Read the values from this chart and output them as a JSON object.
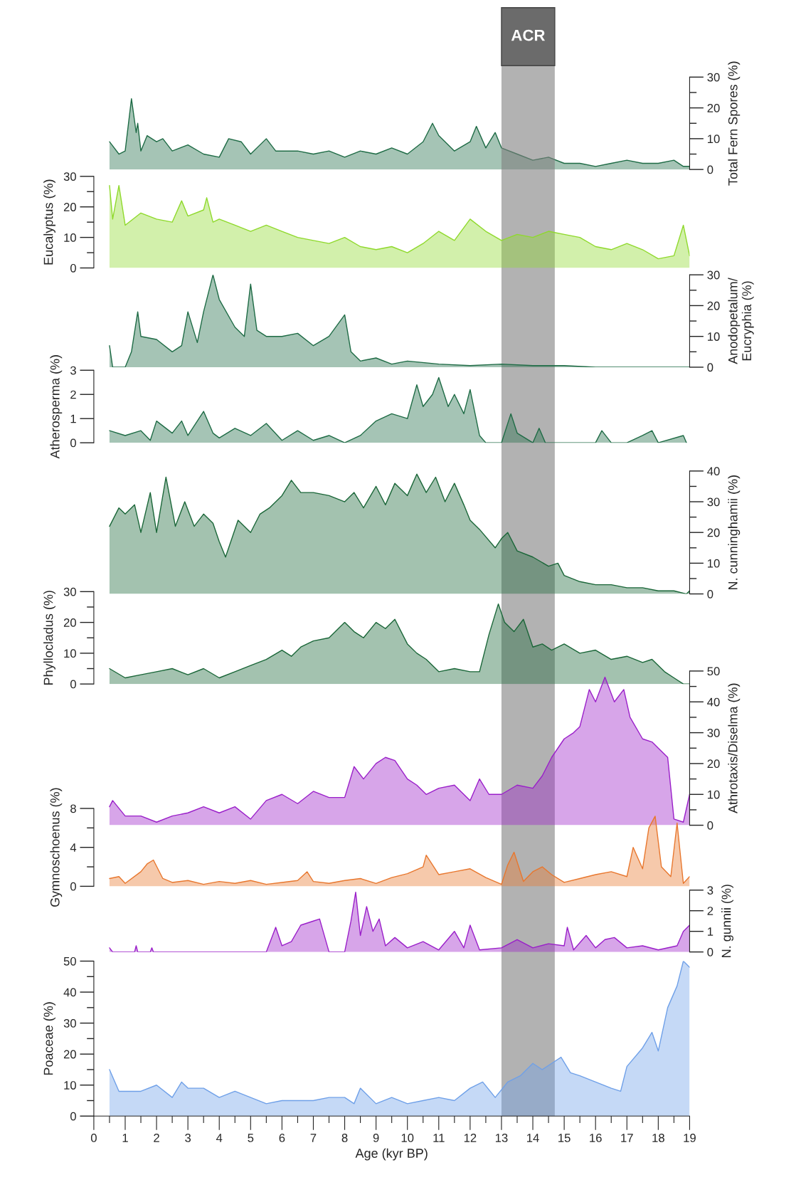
{
  "chart_data": [
    {
      "type": "area",
      "ylabel": "Total Fern Spores (%)",
      "xlim": [
        0,
        19
      ],
      "ylim": [
        0,
        30
      ],
      "yticks": [
        0,
        {
          "value": 5,
          "label": null
        },
        10,
        {
          "value": 15,
          "label": null
        },
        20,
        {
          "value": 25,
          "label": null
        },
        30
      ],
      "tick_labels": "y",
      "bands": [
        {
          "axis": "x",
          "from": 13,
          "to": 14.7,
          "label": "ACR",
          "color": "#7f7f7f"
        }
      ],
      "series": [
        {
          "color": "#1e6b45",
          "x": [
            0.5,
            0.8,
            1.0,
            1.2,
            1.35,
            1.4,
            1.5,
            1.7,
            2.0,
            2.2,
            2.5,
            3.0,
            3.5,
            4.0,
            4.3,
            4.7,
            5.0,
            5.5,
            5.8,
            6.5,
            7.0,
            7.5,
            8.0,
            8.5,
            9.0,
            9.5,
            10.0,
            10.5,
            10.8,
            11.0,
            11.5,
            12.0,
            12.2,
            12.5,
            12.8,
            13.0,
            13.5,
            14.0,
            14.5,
            15.0,
            15.5,
            16.0,
            16.5,
            17.0,
            17.5,
            18.0,
            18.5,
            18.8,
            19.0
          ],
          "values": [
            9,
            5,
            6,
            23,
            12,
            15,
            6,
            11,
            9,
            10,
            6,
            8,
            5,
            4,
            10,
            9,
            5,
            10,
            6,
            6,
            5,
            6,
            4,
            6,
            5,
            7,
            5,
            9,
            15,
            11,
            6,
            9,
            14,
            7,
            12,
            7,
            5,
            3,
            4,
            2,
            2,
            1,
            2,
            3,
            2,
            2,
            3,
            1,
            1
          ]
        }
      ]
    },
    {
      "type": "area",
      "ylabel": "Eucalyptus (%)",
      "xlim": [
        0,
        19
      ],
      "ylim": [
        0,
        30
      ],
      "yticks": [
        0,
        {
          "value": 5,
          "label": null
        },
        10,
        {
          "value": 15,
          "label": null
        },
        20,
        {
          "value": 25,
          "label": null
        },
        30
      ],
      "tick_labels": "y",
      "series": [
        {
          "color": "#8fd92c",
          "x": [
            0.5,
            0.6,
            0.8,
            1.0,
            1.5,
            2.0,
            2.5,
            2.8,
            3.0,
            3.5,
            3.6,
            3.8,
            4.0,
            4.5,
            5.0,
            5.5,
            6.0,
            6.5,
            7.0,
            7.5,
            8.0,
            8.5,
            9.0,
            9.5,
            10.0,
            10.5,
            11.0,
            11.5,
            12.0,
            12.5,
            13.0,
            13.5,
            14.0,
            14.5,
            15.0,
            15.5,
            16.0,
            16.5,
            17.0,
            17.5,
            18.0,
            18.5,
            18.8,
            19.0
          ],
          "values": [
            27,
            16,
            27,
            14,
            18,
            16,
            15,
            22,
            17,
            19,
            23,
            15,
            16,
            14,
            12,
            14,
            12,
            10,
            9,
            8,
            10,
            7,
            6,
            7,
            5,
            8,
            12,
            9,
            16,
            12,
            9,
            11,
            10,
            12,
            11,
            10,
            7,
            6,
            8,
            6,
            3,
            4,
            14,
            4
          ]
        }
      ]
    },
    {
      "type": "area",
      "ylabel": "Anodopetalum/\nEucryphia (%)",
      "xlim": [
        0,
        19
      ],
      "ylim": [
        0,
        30
      ],
      "yticks": [
        0,
        {
          "value": 5,
          "label": null
        },
        10,
        {
          "value": 15,
          "label": null
        },
        20,
        {
          "value": 25,
          "label": null
        },
        30
      ],
      "tick_labels": "y",
      "series": [
        {
          "color": "#1e6b45",
          "x": [
            0.5,
            0.6,
            1.0,
            1.2,
            1.4,
            1.5,
            2.0,
            2.5,
            2.8,
            3.0,
            3.3,
            3.5,
            3.8,
            4.0,
            4.5,
            4.8,
            5.0,
            5.2,
            5.5,
            6.0,
            6.5,
            7.0,
            7.5,
            8.0,
            8.2,
            8.5,
            9.0,
            9.5,
            10.0,
            11.0,
            12.0,
            13.0,
            14.0,
            15.0,
            16.0,
            19.0
          ],
          "values": [
            7,
            0,
            0,
            5,
            18,
            10,
            9,
            5,
            7,
            18,
            8,
            18,
            30,
            22,
            13,
            10,
            27,
            12,
            10,
            10,
            11,
            7,
            10,
            17,
            5,
            2,
            3,
            1,
            2,
            1,
            0.5,
            1,
            0.5,
            0.5,
            0,
            0
          ]
        }
      ]
    },
    {
      "type": "area",
      "ylabel": "Atherosperma (%)",
      "xlim": [
        0,
        19
      ],
      "ylim": [
        0,
        3
      ],
      "yticks": [
        0,
        1,
        2,
        3
      ],
      "tick_labels": "y",
      "series": [
        {
          "color": "#1e6b45",
          "x": [
            0.5,
            1.0,
            1.5,
            1.8,
            2.0,
            2.5,
            2.8,
            3.0,
            3.5,
            3.8,
            4.0,
            4.5,
            5.0,
            5.5,
            6.0,
            6.5,
            7.0,
            7.5,
            8.0,
            8.5,
            9.0,
            9.5,
            10.0,
            10.3,
            10.5,
            10.8,
            11.0,
            11.3,
            11.5,
            11.8,
            12.0,
            12.3,
            12.5,
            13.0,
            13.3,
            13.5,
            14.0,
            14.2,
            14.4,
            16.0,
            16.2,
            16.5,
            17.0,
            17.5,
            17.8,
            18.0,
            18.8,
            18.9
          ],
          "values": [
            0.5,
            0.3,
            0.5,
            0.1,
            0.9,
            0.4,
            0.9,
            0.3,
            1.3,
            0.4,
            0.2,
            0.6,
            0.3,
            0.8,
            0.1,
            0.5,
            0.1,
            0.3,
            0,
            0.3,
            0.9,
            1.2,
            1.0,
            2.4,
            1.5,
            2.0,
            2.7,
            1.5,
            2.0,
            1.2,
            2.2,
            0.3,
            0,
            0,
            1.2,
            0.4,
            0,
            0.6,
            0,
            0,
            0.5,
            0,
            0,
            0.3,
            0.5,
            0,
            0.3,
            0
          ]
        }
      ]
    },
    {
      "type": "area",
      "ylabel": "N. cunninghamii (%)",
      "xlim": [
        0,
        19
      ],
      "ylim": [
        0,
        40
      ],
      "yticks": [
        0,
        {
          "value": 5,
          "label": null
        },
        10,
        {
          "value": 15,
          "label": null
        },
        20,
        {
          "value": 25,
          "label": null
        },
        30,
        {
          "value": 35,
          "label": null
        },
        40
      ],
      "tick_labels": "y",
      "series": [
        {
          "color": "#1a6638",
          "x": [
            0.5,
            0.8,
            1.0,
            1.3,
            1.5,
            1.8,
            2.0,
            2.3,
            2.6,
            2.9,
            3.2,
            3.5,
            3.8,
            4.0,
            4.2,
            4.6,
            5.0,
            5.3,
            5.6,
            6.0,
            6.3,
            6.6,
            7.0,
            7.5,
            8.0,
            8.3,
            8.6,
            9.0,
            9.3,
            9.6,
            10.0,
            10.3,
            10.6,
            10.9,
            11.2,
            11.5,
            11.8,
            12.0,
            12.3,
            12.8,
            13.0,
            13.2,
            13.5,
            14.0,
            14.5,
            14.8,
            15.0,
            15.5,
            16.0,
            16.5,
            17.0,
            17.5,
            18.0,
            18.5,
            18.9,
            19.0
          ],
          "values": [
            22,
            28,
            26,
            29,
            20,
            33,
            20,
            38,
            22,
            30,
            22,
            26,
            23,
            17,
            12,
            24,
            20,
            26,
            28,
            32,
            37,
            33,
            33,
            32,
            30,
            33,
            28,
            35,
            29,
            36,
            32,
            39,
            33,
            38,
            30,
            36,
            29,
            24,
            21,
            15,
            18,
            20,
            14,
            12,
            9,
            10,
            6,
            4,
            3,
            3,
            2,
            2,
            1,
            1,
            0,
            1
          ]
        }
      ]
    },
    {
      "type": "area",
      "ylabel": "Phyllocladus (%)",
      "xlim": [
        0,
        19
      ],
      "ylim": [
        0,
        30
      ],
      "yticks": [
        0,
        {
          "value": 5,
          "label": null
        },
        10,
        {
          "value": 15,
          "label": null
        },
        20,
        {
          "value": 25,
          "label": null
        },
        30
      ],
      "tick_labels": "y",
      "series": [
        {
          "color": "#1a6638",
          "x": [
            0.5,
            1.0,
            1.5,
            2.0,
            2.5,
            3.0,
            3.5,
            4.0,
            4.5,
            5.0,
            5.5,
            6.0,
            6.3,
            6.6,
            7.0,
            7.5,
            8.0,
            8.3,
            8.6,
            9.0,
            9.3,
            9.6,
            10.0,
            10.3,
            10.6,
            11.0,
            11.5,
            12.0,
            12.3,
            12.6,
            12.9,
            13.1,
            13.4,
            13.7,
            14.0,
            14.3,
            14.6,
            15.0,
            15.5,
            16.0,
            16.5,
            17.0,
            17.5,
            17.8,
            18.2,
            18.5,
            18.8,
            19.0
          ],
          "values": [
            5,
            2,
            3,
            4,
            5,
            3,
            5,
            2,
            4,
            6,
            8,
            11,
            9,
            12,
            14,
            15,
            20,
            17,
            15,
            20,
            18,
            21,
            13,
            10,
            8,
            4,
            5,
            4,
            4,
            16,
            26,
            20,
            17,
            21,
            12,
            13,
            11,
            13,
            10,
            11,
            8,
            9,
            7,
            8,
            4,
            2,
            0,
            0
          ]
        }
      ]
    },
    {
      "type": "area",
      "ylabel": "Athrotaxis/Diselma (%)",
      "xlim": [
        0,
        19
      ],
      "ylim": [
        0,
        50
      ],
      "yticks": [
        0,
        {
          "value": 5,
          "label": null
        },
        10,
        {
          "value": 15,
          "label": null
        },
        20,
        {
          "value": 25,
          "label": null
        },
        30,
        {
          "value": 35,
          "label": null
        },
        40,
        {
          "value": 45,
          "label": null
        },
        50
      ],
      "tick_labels": "y",
      "series": [
        {
          "color": "#9a1fc9",
          "x": [
            0.5,
            0.6,
            1.0,
            1.5,
            2.0,
            2.5,
            3.0,
            3.5,
            4.0,
            4.5,
            5.0,
            5.5,
            6.0,
            6.5,
            7.0,
            7.5,
            8.0,
            8.3,
            8.6,
            9.0,
            9.3,
            9.6,
            10.0,
            10.3,
            10.6,
            11.0,
            11.5,
            12.0,
            12.3,
            12.6,
            13.0,
            13.5,
            14.0,
            14.3,
            14.6,
            15.0,
            15.3,
            15.5,
            15.8,
            16.0,
            16.3,
            16.6,
            16.9,
            17.1,
            17.5,
            17.8,
            18.0,
            18.3,
            18.5,
            18.8,
            19.0
          ],
          "values": [
            6,
            8,
            3,
            3,
            1,
            3,
            4,
            6,
            4,
            6,
            2,
            8,
            10,
            7,
            11,
            9,
            9,
            19,
            15,
            20,
            22,
            21,
            15,
            13,
            10,
            12,
            13,
            8,
            15,
            10,
            10,
            13,
            12,
            16,
            22,
            28,
            30,
            32,
            44,
            40,
            48,
            40,
            44,
            35,
            28,
            27,
            25,
            22,
            2,
            1,
            10
          ]
        }
      ]
    },
    {
      "type": "area",
      "ylabel": "Gymnoschoenus (%)",
      "xlim": [
        0,
        19
      ],
      "ylim": [
        0,
        8
      ],
      "yticks": [
        0,
        {
          "value": 2,
          "label": null
        },
        4,
        {
          "value": 6,
          "label": null
        },
        8
      ],
      "tick_labels": "y",
      "series": [
        {
          "color": "#e8772e",
          "x": [
            0.5,
            0.8,
            1.0,
            1.5,
            1.7,
            1.9,
            2.2,
            2.5,
            3.0,
            3.5,
            4.0,
            4.5,
            5.0,
            5.5,
            6.0,
            6.5,
            6.8,
            7.0,
            7.5,
            8.0,
            8.5,
            9.0,
            9.5,
            10.0,
            10.5,
            10.6,
            11.0,
            11.5,
            12.0,
            12.5,
            13.0,
            13.2,
            13.4,
            13.7,
            14.0,
            14.3,
            14.6,
            15.0,
            15.5,
            16.0,
            16.5,
            17.0,
            17.2,
            17.5,
            17.7,
            17.9,
            18.1,
            18.4,
            18.6,
            18.8,
            19.0
          ],
          "values": [
            0.8,
            1.0,
            0.3,
            1.5,
            2.3,
            2.7,
            0.8,
            0.4,
            0.6,
            0.2,
            0.5,
            0.3,
            0.6,
            0.2,
            0.4,
            0.6,
            1.5,
            0.5,
            0.3,
            0.6,
            0.8,
            0.3,
            0.9,
            1.3,
            2.0,
            3.2,
            1.2,
            1.5,
            1.8,
            0.9,
            0.2,
            2.2,
            3.5,
            0.5,
            1.5,
            2.0,
            1.2,
            0.4,
            0.8,
            1.2,
            1.5,
            1.0,
            4.0,
            1.8,
            6.0,
            7.2,
            2.0,
            1.0,
            6.5,
            0.3,
            1.0
          ]
        }
      ]
    },
    {
      "type": "area",
      "ylabel": "N. gunnii (%)",
      "xlim": [
        0,
        19
      ],
      "ylim": [
        0,
        3
      ],
      "yticks": [
        0,
        1,
        2,
        3
      ],
      "tick_labels": "y",
      "series": [
        {
          "color": "#9a1fc9",
          "x": [
            0.5,
            0.6,
            1.3,
            1.35,
            1.4,
            1.8,
            1.85,
            1.9,
            5.5,
            5.8,
            6.0,
            6.3,
            6.6,
            7.0,
            7.2,
            7.5,
            8.0,
            8.2,
            8.35,
            8.5,
            8.7,
            8.9,
            9.1,
            9.3,
            9.6,
            10.0,
            10.5,
            11.0,
            11.5,
            11.8,
            12.0,
            12.3,
            13.0,
            13.5,
            14.0,
            14.5,
            15.0,
            15.1,
            15.3,
            15.7,
            16.0,
            16.3,
            16.6,
            17.0,
            17.5,
            18.0,
            18.6,
            18.8,
            19.0
          ],
          "values": [
            0.2,
            0,
            0,
            0.3,
            0,
            0,
            0.2,
            0,
            0,
            1.2,
            0.3,
            0.5,
            1.3,
            1.5,
            1.6,
            0,
            0,
            1.5,
            2.9,
            0.8,
            2.2,
            1.0,
            1.6,
            0.3,
            0.7,
            0.2,
            0.5,
            0.1,
            1.0,
            0.2,
            1.3,
            0.1,
            0.2,
            0.6,
            0.2,
            0.4,
            0.3,
            1.2,
            0.1,
            0.8,
            0.2,
            0.6,
            0.7,
            0.2,
            0.3,
            0.1,
            0.3,
            1.0,
            1.3
          ]
        }
      ]
    },
    {
      "type": "area",
      "ylabel": "Poaceae (%)",
      "xlabel": "Age (kyr BP)",
      "xlim": [
        0,
        19
      ],
      "ylim": [
        0,
        50
      ],
      "yticks": [
        0,
        {
          "value": 5,
          "label": null
        },
        10,
        {
          "value": 15,
          "label": null
        },
        20,
        {
          "value": 25,
          "label": null
        },
        30,
        {
          "value": 35,
          "label": null
        },
        40,
        {
          "value": 45,
          "label": null
        },
        50
      ],
      "xticks": [
        0,
        {
          "value": 0.5,
          "label": null
        },
        1,
        {
          "value": 1.5,
          "label": null
        },
        2,
        {
          "value": 2.5,
          "label": null
        },
        3,
        {
          "value": 3.5,
          "label": null
        },
        4,
        {
          "value": 4.5,
          "label": null
        },
        5,
        {
          "value": 5.5,
          "label": null
        },
        6,
        {
          "value": 6.5,
          "label": null
        },
        7,
        {
          "value": 7.5,
          "label": null
        },
        8,
        {
          "value": 8.5,
          "label": null
        },
        9,
        {
          "value": 9.5,
          "label": null
        },
        10,
        {
          "value": 10.5,
          "label": null
        },
        11,
        {
          "value": 11.5,
          "label": null
        },
        12,
        {
          "value": 12.5,
          "label": null
        },
        13,
        {
          "value": 13.5,
          "label": null
        },
        14,
        {
          "value": 14.5,
          "label": null
        },
        15,
        {
          "value": 15.5,
          "label": null
        },
        16,
        {
          "value": 16.5,
          "label": null
        },
        17,
        {
          "value": 17.5,
          "label": null
        },
        18,
        {
          "value": 18.5,
          "label": null
        },
        19
      ],
      "series": [
        {
          "color": "#6fa0e8",
          "x": [
            0.5,
            0.8,
            1.5,
            2.0,
            2.5,
            2.8,
            3.0,
            3.5,
            4.0,
            4.5,
            5.0,
            5.5,
            6.0,
            6.5,
            7.0,
            7.5,
            8.0,
            8.3,
            8.5,
            9.0,
            9.5,
            10.0,
            10.5,
            11.0,
            11.5,
            12.0,
            12.4,
            12.8,
            13.2,
            13.6,
            14.0,
            14.3,
            14.6,
            14.9,
            15.2,
            15.5,
            16.0,
            16.5,
            16.8,
            17.0,
            17.5,
            17.8,
            18.0,
            18.3,
            18.6,
            18.8,
            19.0
          ],
          "values": [
            15,
            8,
            8,
            10,
            6,
            11,
            9,
            9,
            6,
            8,
            6,
            4,
            5,
            5,
            5,
            6,
            6,
            4,
            9,
            4,
            6,
            4,
            5,
            6,
            5,
            9,
            11,
            6,
            11,
            13,
            17,
            15,
            17,
            19,
            14,
            13,
            11,
            9,
            8,
            16,
            22,
            27,
            21,
            35,
            42,
            50,
            48
          ]
        }
      ]
    }
  ]
}
